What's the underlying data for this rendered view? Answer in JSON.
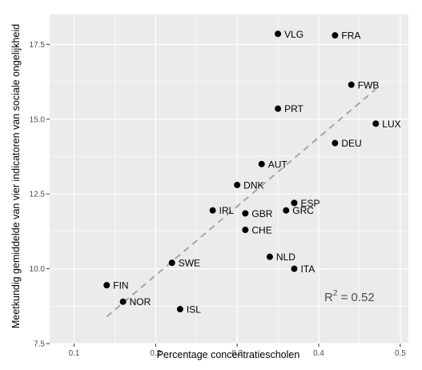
{
  "chart_data": {
    "type": "scatter",
    "xlabel": "Percentage concentratiescholen",
    "ylabel": "Meetkundig gemiddelde van vier indicatoren van sociale ongelijkheid",
    "xlim": [
      0.07,
      0.51
    ],
    "ylim": [
      7.5,
      18.5
    ],
    "x_ticks": [
      0.1,
      0.2,
      0.3,
      0.4,
      0.5
    ],
    "x_tick_labels": [
      "0.1",
      "0.2",
      "0.3",
      "0.4",
      "0.5"
    ],
    "y_ticks": [
      7.5,
      10.0,
      12.5,
      15.0,
      17.5
    ],
    "y_tick_labels": [
      "7.5",
      "10.0",
      "12.5",
      "15.0",
      "17.5"
    ],
    "grid": true,
    "points": [
      {
        "label": "VLG",
        "x": 0.35,
        "y": 17.85
      },
      {
        "label": "FRA",
        "x": 0.42,
        "y": 17.8
      },
      {
        "label": "FWB",
        "x": 0.44,
        "y": 16.15
      },
      {
        "label": "PRT",
        "x": 0.35,
        "y": 15.35
      },
      {
        "label": "LUX",
        "x": 0.47,
        "y": 14.85
      },
      {
        "label": "DEU",
        "x": 0.42,
        "y": 14.2
      },
      {
        "label": "AUT",
        "x": 0.33,
        "y": 13.5
      },
      {
        "label": "DNK",
        "x": 0.3,
        "y": 12.8
      },
      {
        "label": "ESP",
        "x": 0.37,
        "y": 12.2
      },
      {
        "label": "IRL",
        "x": 0.27,
        "y": 11.95
      },
      {
        "label": "GBR",
        "x": 0.31,
        "y": 11.85
      },
      {
        "label": "GRC",
        "x": 0.36,
        "y": 11.95
      },
      {
        "label": "CHE",
        "x": 0.31,
        "y": 11.3
      },
      {
        "label": "NLD",
        "x": 0.34,
        "y": 10.4
      },
      {
        "label": "SWE",
        "x": 0.22,
        "y": 10.2
      },
      {
        "label": "ITA",
        "x": 0.37,
        "y": 10.0
      },
      {
        "label": "FIN",
        "x": 0.14,
        "y": 9.45
      },
      {
        "label": "NOR",
        "x": 0.16,
        "y": 8.9
      },
      {
        "label": "ISL",
        "x": 0.23,
        "y": 8.65
      }
    ],
    "trendline": {
      "x": [
        0.14,
        0.47
      ],
      "y": [
        8.4,
        16.0
      ],
      "style": "dashed"
    },
    "annotation": {
      "prefix": "R",
      "superscript": "2",
      "suffix": " = 0.52"
    },
    "colors": {
      "panel_background": "#ebebeb",
      "grid": "#ffffff",
      "points": "#000000",
      "trendline": "#a6a6a6"
    }
  }
}
